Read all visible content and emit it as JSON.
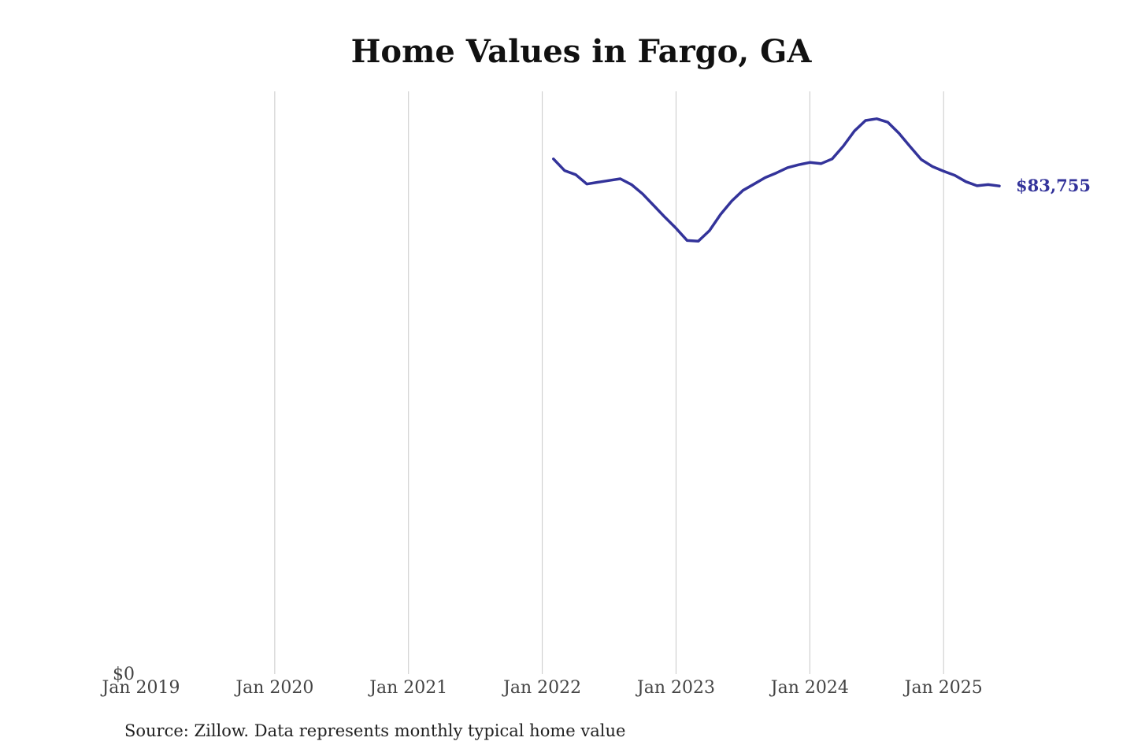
{
  "chart_data": {
    "type": "line",
    "title": "Home Values in Fargo, GA",
    "xlabel": "",
    "ylabel": "",
    "xlim": [
      "2019-01",
      "2025-06"
    ],
    "ylim": [
      0,
      100000
    ],
    "y_ticks": [
      {
        "value": 0,
        "label": "$0"
      }
    ],
    "x_ticks": [
      {
        "date": "2019-01",
        "label": "Jan 2019"
      },
      {
        "date": "2020-01",
        "label": "Jan 2020"
      },
      {
        "date": "2021-01",
        "label": "Jan 2021"
      },
      {
        "date": "2022-01",
        "label": "Jan 2022"
      },
      {
        "date": "2023-01",
        "label": "Jan 2023"
      },
      {
        "date": "2024-01",
        "label": "Jan 2024"
      },
      {
        "date": "2025-01",
        "label": "Jan 2025"
      }
    ],
    "grid": "vertical",
    "end_label": "$83,755",
    "line_color": "#33339a",
    "series": [
      {
        "x": [
          "2022-02",
          "2022-03",
          "2022-04",
          "2022-05",
          "2022-06",
          "2022-07",
          "2022-08",
          "2022-09",
          "2022-10",
          "2022-11",
          "2022-12",
          "2023-01",
          "2023-02",
          "2023-03",
          "2023-04",
          "2023-05",
          "2023-06",
          "2023-07",
          "2023-08",
          "2023-09",
          "2023-10",
          "2023-11",
          "2023-12",
          "2024-01",
          "2024-02",
          "2024-03",
          "2024-04",
          "2024-05",
          "2024-06",
          "2024-07",
          "2024-08",
          "2024-09",
          "2024-10",
          "2024-11",
          "2024-12",
          "2025-01",
          "2025-02",
          "2025-03",
          "2025-04",
          "2025-05",
          "2025-06"
        ],
        "values": [
          88400,
          86400,
          85700,
          84100,
          84400,
          84700,
          85000,
          84000,
          82400,
          80400,
          78400,
          76500,
          74400,
          74300,
          76100,
          78900,
          81200,
          83000,
          84100,
          85200,
          86000,
          86900,
          87400,
          87800,
          87600,
          88400,
          90600,
          93200,
          95000,
          95300,
          94700,
          92800,
          90500,
          88300,
          87100,
          86300,
          85600,
          84500,
          83800,
          84000,
          83755
        ]
      }
    ]
  },
  "source_note": "Source: Zillow. Data represents monthly typical home value"
}
